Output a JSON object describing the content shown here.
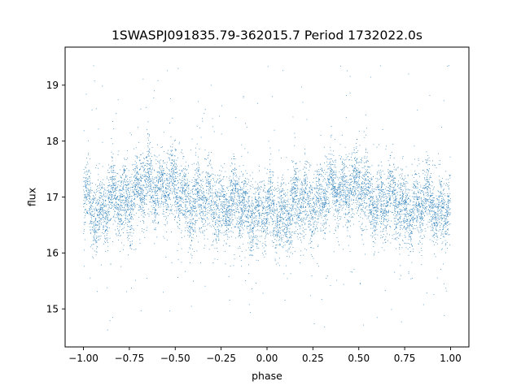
{
  "chart_data": {
    "type": "scatter",
    "title": "1SWASPJ091835.79-362015.7 Period 1732022.0s",
    "xlabel": "phase",
    "ylabel": "flux",
    "xlim": [
      -1.1,
      1.1
    ],
    "ylim": [
      14.32,
      19.68
    ],
    "xticks": [
      -1.0,
      -0.75,
      -0.5,
      -0.25,
      0.0,
      0.25,
      0.5,
      0.75,
      1.0
    ],
    "xtick_labels": [
      "−1.00",
      "−0.75",
      "−0.50",
      "−0.25",
      "0.00",
      "0.25",
      "0.50",
      "0.75",
      "1.00"
    ],
    "yticks": [
      15,
      16,
      17,
      18,
      19
    ],
    "ytick_labels": [
      "15",
      "16",
      "17",
      "18",
      "19"
    ],
    "grid": false,
    "marker_color": "#1f77b4",
    "series": [
      {
        "phase_range": [
          -1.0,
          1.0
        ],
        "median_flux": 16.95,
        "typical_spread": [
          16.3,
          17.7
        ],
        "outlier_range": [
          14.6,
          19.4
        ],
        "profile_phase": [
          -1.0,
          -0.9,
          -0.8,
          -0.7,
          -0.6,
          -0.55,
          -0.5,
          -0.4,
          -0.3,
          -0.2,
          -0.1,
          0.0,
          0.1,
          0.2,
          0.3,
          0.4,
          0.45,
          0.5,
          0.6,
          0.7,
          0.8,
          0.9,
          1.0
        ],
        "profile_flux": [
          16.9,
          16.75,
          16.95,
          17.1,
          17.2,
          17.25,
          17.1,
          16.95,
          16.9,
          16.85,
          16.8,
          16.7,
          16.75,
          16.85,
          17.0,
          17.15,
          17.25,
          17.1,
          16.95,
          16.85,
          16.8,
          16.85,
          16.85
        ]
      }
    ]
  }
}
